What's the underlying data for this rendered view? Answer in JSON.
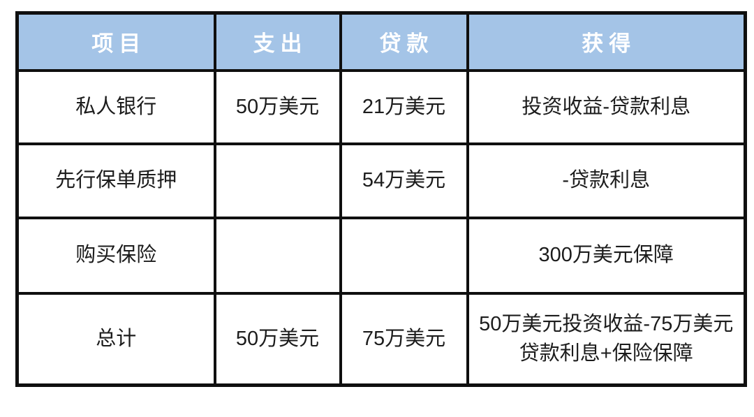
{
  "colors": {
    "page_bg": "#ffffff",
    "header_bg": "#a4c4e7",
    "header_text": "#ffffff",
    "body_text": "#1c1c1c",
    "border": "#0f0f0f",
    "cell_bg": "#ffffff"
  },
  "table": {
    "headers": [
      "项目",
      "支出",
      "贷款",
      "获得"
    ],
    "rows": [
      [
        "私人银行",
        "50万美元",
        "21万美元",
        "投资收益-贷款利息"
      ],
      [
        "先行保单质押",
        "",
        "54万美元",
        "-贷款利息"
      ],
      [
        "购买保险",
        "",
        "",
        "300万美元保障"
      ],
      [
        "总计",
        "50万美元",
        "75万美元",
        "50万美元投资收益-75万美元贷款利息+保险保障"
      ]
    ]
  },
  "chart_data": {
    "type": "table",
    "title": "",
    "columns": [
      "项目",
      "支出",
      "贷款",
      "获得"
    ],
    "rows": [
      {
        "项目": "私人银行",
        "支出": "50万美元",
        "贷款": "21万美元",
        "获得": "投资收益-贷款利息"
      },
      {
        "项目": "先行保单质押",
        "支出": "",
        "贷款": "54万美元",
        "获得": "-贷款利息"
      },
      {
        "项目": "购买保险",
        "支出": "",
        "贷款": "",
        "获得": "300万美元保障"
      },
      {
        "项目": "总计",
        "支出": "50万美元",
        "贷款": "75万美元",
        "获得": "50万美元投资收益-75万美元贷款利息+保险保障"
      }
    ],
    "layout_hints": {
      "header_fill": "#a4c4e7",
      "header_text_color": "#ffffff",
      "grid": true,
      "border_color": "#0f0f0f",
      "cell_alignment": "center"
    }
  }
}
